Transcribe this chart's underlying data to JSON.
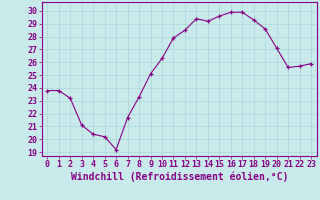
{
  "x": [
    0,
    1,
    2,
    3,
    4,
    5,
    6,
    7,
    8,
    9,
    10,
    11,
    12,
    13,
    14,
    15,
    16,
    17,
    18,
    19,
    20,
    21,
    22,
    23
  ],
  "y": [
    23.8,
    23.8,
    23.2,
    21.1,
    20.4,
    20.2,
    19.2,
    21.7,
    23.3,
    25.1,
    26.3,
    27.9,
    28.5,
    29.4,
    29.2,
    29.6,
    29.9,
    29.9,
    29.3,
    28.6,
    27.1,
    25.6,
    25.7,
    25.9
  ],
  "line_color": "#880088",
  "marker": "+",
  "bg_color": "#c8eaea",
  "grid_color": "#aad8d8",
  "xlabel": "Windchill (Refroidissement éolien,°C)",
  "ylabel_ticks": [
    19,
    20,
    21,
    22,
    23,
    24,
    25,
    26,
    27,
    28,
    29,
    30
  ],
  "xtick_labels": [
    "0",
    "1",
    "2",
    "3",
    "4",
    "5",
    "6",
    "7",
    "8",
    "9",
    "10",
    "11",
    "12",
    "13",
    "14",
    "15",
    "16",
    "17",
    "18",
    "19",
    "20",
    "21",
    "22",
    "23"
  ],
  "ylim": [
    18.7,
    30.7
  ],
  "xlim": [
    -0.5,
    23.5
  ],
  "tick_color": "#880088",
  "tick_fontsize": 6.0,
  "xlabel_fontsize": 7.0
}
